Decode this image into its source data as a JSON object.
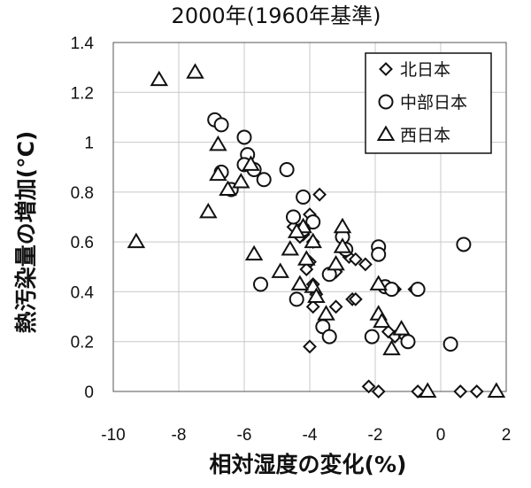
{
  "chart_data": {
    "type": "scatter",
    "title": "2000年(1960年基準)",
    "xlabel": "相対湿度の変化(%)",
    "ylabel": "熱汚染量の増加(°C)",
    "xlim": [
      -10,
      2
    ],
    "ylim": [
      0,
      1.4
    ],
    "x_ticks": [
      "-10",
      "-8",
      "-6",
      "-4",
      "-2",
      "0",
      "2"
    ],
    "y_ticks": [
      "0",
      "0.2",
      "0.4",
      "0.6",
      "0.8",
      "1",
      "1.2",
      "1.4"
    ],
    "grid": true,
    "legend_position": "top-right",
    "series": [
      {
        "name": "北日本",
        "marker": "diamond",
        "points": [
          [
            -3.7,
            0.79
          ],
          [
            -4.0,
            0.71
          ],
          [
            -4.5,
            0.66
          ],
          [
            -4.2,
            0.63
          ],
          [
            -4.3,
            0.62
          ],
          [
            -3.9,
            0.6
          ],
          [
            -3.0,
            0.61
          ],
          [
            -2.8,
            0.54
          ],
          [
            -2.6,
            0.53
          ],
          [
            -2.3,
            0.51
          ],
          [
            -2.9,
            0.56
          ],
          [
            -3.2,
            0.48
          ],
          [
            -4.0,
            0.52
          ],
          [
            -4.1,
            0.49
          ],
          [
            -3.9,
            0.43
          ],
          [
            -3.8,
            0.39
          ],
          [
            -3.9,
            0.34
          ],
          [
            -3.2,
            0.34
          ],
          [
            -2.7,
            0.37
          ],
          [
            -2.6,
            0.37
          ],
          [
            -1.6,
            0.42
          ],
          [
            -1.4,
            0.41
          ],
          [
            -1.6,
            0.24
          ],
          [
            -1.4,
            0.22
          ],
          [
            -1.1,
            0.22
          ],
          [
            -4.0,
            0.18
          ],
          [
            -2.2,
            0.02
          ],
          [
            -1.9,
            0.0
          ],
          [
            -0.7,
            0.0
          ],
          [
            0.6,
            0.0
          ],
          [
            1.1,
            0.0
          ],
          [
            -0.8,
            0.41
          ]
        ]
      },
      {
        "name": "中部日本",
        "marker": "circle",
        "points": [
          [
            -6.9,
            1.09
          ],
          [
            -6.7,
            1.07
          ],
          [
            -6.0,
            1.02
          ],
          [
            -5.9,
            0.95
          ],
          [
            -6.0,
            0.91
          ],
          [
            -5.7,
            0.89
          ],
          [
            -6.7,
            0.88
          ],
          [
            -6.4,
            0.81
          ],
          [
            -5.4,
            0.85
          ],
          [
            -4.7,
            0.89
          ],
          [
            -4.2,
            0.78
          ],
          [
            -4.5,
            0.7
          ],
          [
            -3.9,
            0.68
          ],
          [
            -4.2,
            0.65
          ],
          [
            -3.0,
            0.62
          ],
          [
            -1.9,
            0.58
          ],
          [
            0.7,
            0.59
          ],
          [
            -2.9,
            0.57
          ],
          [
            -1.9,
            0.55
          ],
          [
            -3.4,
            0.47
          ],
          [
            -5.5,
            0.43
          ],
          [
            -4.4,
            0.37
          ],
          [
            -1.7,
            0.42
          ],
          [
            -0.7,
            0.41
          ],
          [
            -3.6,
            0.26
          ],
          [
            -3.4,
            0.22
          ],
          [
            -2.1,
            0.22
          ],
          [
            -1.0,
            0.2
          ],
          [
            0.3,
            0.19
          ],
          [
            -1.5,
            0.41
          ]
        ]
      },
      {
        "name": "西日本",
        "marker": "triangle",
        "points": [
          [
            -7.5,
            1.28
          ],
          [
            -8.6,
            1.25
          ],
          [
            -6.8,
            0.99
          ],
          [
            -5.8,
            0.91
          ],
          [
            -6.8,
            0.87
          ],
          [
            -6.1,
            0.84
          ],
          [
            -6.5,
            0.81
          ],
          [
            -7.1,
            0.72
          ],
          [
            -3.0,
            0.66
          ],
          [
            -4.2,
            0.66
          ],
          [
            -4.4,
            0.64
          ],
          [
            -3.9,
            0.6
          ],
          [
            -3.0,
            0.58
          ],
          [
            -4.6,
            0.57
          ],
          [
            -5.7,
            0.55
          ],
          [
            -3.2,
            0.51
          ],
          [
            -4.1,
            0.53
          ],
          [
            -4.9,
            0.48
          ],
          [
            -3.9,
            0.42
          ],
          [
            -4.3,
            0.43
          ],
          [
            -1.9,
            0.43
          ],
          [
            -3.8,
            0.38
          ],
          [
            -3.5,
            0.31
          ],
          [
            -1.9,
            0.31
          ],
          [
            -1.8,
            0.28
          ],
          [
            -1.2,
            0.25
          ],
          [
            -1.5,
            0.17
          ],
          [
            -9.3,
            0.6
          ],
          [
            -0.4,
            0.0
          ],
          [
            1.7,
            0.0
          ]
        ]
      }
    ]
  }
}
